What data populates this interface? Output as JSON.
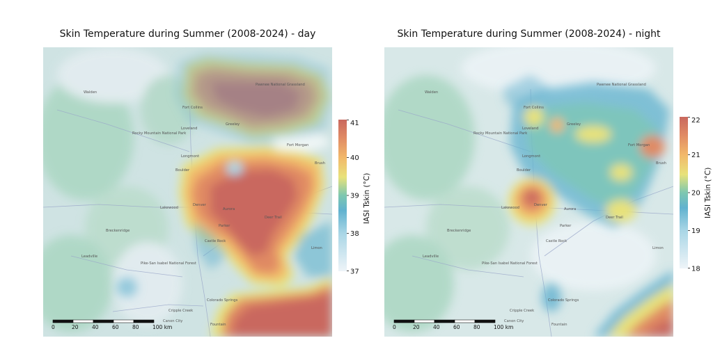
{
  "chart_data": [
    {
      "type": "heatmap",
      "title": "Skin Temperature during Summer (2008-2024) - day",
      "colorbar": {
        "label": "IASI Tskin (°C)",
        "range": [
          37,
          41
        ],
        "ticks": [
          37,
          38,
          39,
          40,
          41
        ]
      },
      "places": [
        "Fort Collins",
        "Greeley",
        "Loveland",
        "Longmont",
        "Boulder",
        "Denver",
        "Lakewood",
        "Aurora",
        "Castle Rock",
        "Colorado Springs",
        "Fountain",
        "Parker",
        "Rocky Mountain National Park",
        "Pike-San Isabel National Forest",
        "Breckenridge",
        "Leadville",
        "Walden",
        "Pawnee National Grassland",
        "Fort Morgan",
        "Brush",
        "Cripple Creek",
        "Canon City",
        "Deer Trail",
        "Limon"
      ],
      "scale_bar": {
        "ticks": [
          "0",
          "20",
          "40",
          "60",
          "80",
          "100 km"
        ]
      }
    },
    {
      "type": "heatmap",
      "title": "Skin Temperature during Summer (2008-2024) - night",
      "colorbar": {
        "label": "IASI Tskin (°C)",
        "range": [
          18,
          22
        ],
        "ticks": [
          18,
          19,
          20,
          21,
          22
        ]
      },
      "places": [
        "Fort Collins",
        "Greeley",
        "Loveland",
        "Longmont",
        "Boulder",
        "Denver",
        "Lakewood",
        "Aurora",
        "Castle Rock",
        "Colorado Springs",
        "Fountain",
        "Parker",
        "Rocky Mountain National Park",
        "Pike-San Isabel National Forest",
        "Breckenridge",
        "Leadville",
        "Walden",
        "Pawnee National Grassland",
        "Fort Morgan",
        "Brush",
        "Cripple Creek",
        "Canon City",
        "Deer Trail",
        "Limon"
      ],
      "scale_bar": {
        "ticks": [
          "0",
          "20",
          "40",
          "60",
          "80",
          "100 km"
        ]
      }
    }
  ],
  "colors": [
    "#eef4f8",
    "#a9d6e6",
    "#61b2cf",
    "#7ec8b0",
    "#e8e27a",
    "#f2b86a",
    "#e08a64",
    "#c9685e"
  ]
}
